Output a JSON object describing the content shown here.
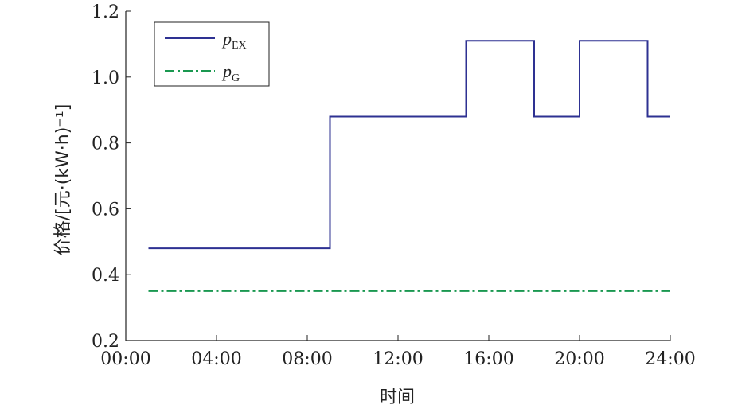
{
  "chart_data": {
    "type": "line",
    "xlabel": "时间",
    "ylabel": "价格/[元·(kW·h)⁻¹]",
    "xlim": [
      "00:00",
      "24:00"
    ],
    "ylim": [
      0.2,
      1.2
    ],
    "x_ticks": [
      "00:00",
      "04:00",
      "08:00",
      "12:00",
      "16:00",
      "20:00",
      "24:00"
    ],
    "y_ticks": [
      "0.2",
      "0.4",
      "0.6",
      "0.8",
      "1.0",
      "1.2"
    ],
    "grid": false,
    "legend_position": "top-left",
    "series": [
      {
        "name": "pEX",
        "legend_main": "p",
        "legend_sub": "EX",
        "color": "#2e3192",
        "style": "solid",
        "step": true,
        "x": [
          "01:00",
          "09:00",
          "15:00",
          "18:00",
          "20:00",
          "23:00",
          "24:00"
        ],
        "y": [
          0.48,
          0.88,
          1.11,
          0.88,
          1.11,
          0.88,
          0.88
        ]
      },
      {
        "name": "pG",
        "legend_main": "p",
        "legend_sub": "G",
        "color": "#1a9850",
        "style": "dashdot",
        "step": true,
        "x": [
          "01:00",
          "24:00"
        ],
        "y": [
          0.35,
          0.35
        ]
      }
    ]
  }
}
